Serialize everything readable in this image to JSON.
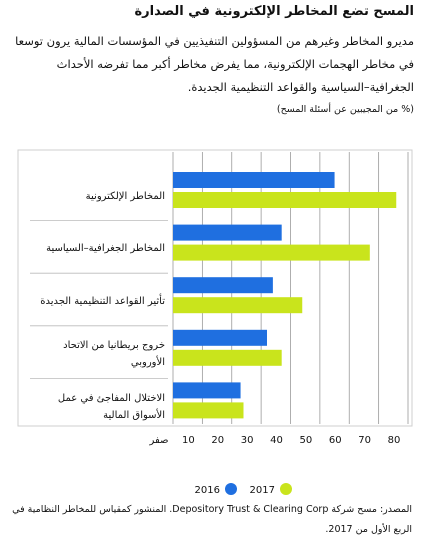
{
  "chart_data": {
    "type": "bar",
    "orientation": "horizontal",
    "title": "المسح تضع المخاطر الإلكترونية في الصدارة",
    "subtitle": "مديرو المخاطر وغيرهم من المسؤولين التنفيذيين في المؤسسات المالية يرون توسعا في مخاطر الهجمات الإلكترونية، مما يفرض مخاطر أكبر مما تفرضه الأحداث الجغرافية–السياسية والقواعد التنظيمية الجديدة.",
    "note": "(% من المجيبين عن أسئلة المسح)",
    "categories": [
      "المخاطر الإلكترونية",
      "المخاطر الجغرافية–السياسية",
      "تأثير القواعد التنظيمية الجديدة",
      "خروج بريطانيا من الاتحاد الأوروبي",
      "الاختلال المفاجئ في عمل الأسواق المالية"
    ],
    "series": [
      {
        "name": "2016",
        "color": "#1f6fe0",
        "values": [
          55,
          37,
          34,
          32,
          23
        ]
      },
      {
        "name": "2017",
        "color": "#c9e41c",
        "values": [
          76,
          67,
          44,
          37,
          24
        ]
      }
    ],
    "xlim": [
      0,
      80
    ],
    "xticks": [
      {
        "value": 0,
        "label": "صفر"
      },
      10,
      20,
      30,
      40,
      50,
      60,
      70,
      80
    ],
    "grid": true,
    "source": "المصدر: مسح شركة Depository Trust & Clearing Corp. المنشور كمقياس للمخاطر النظامية في الربع الأول من 2017."
  }
}
